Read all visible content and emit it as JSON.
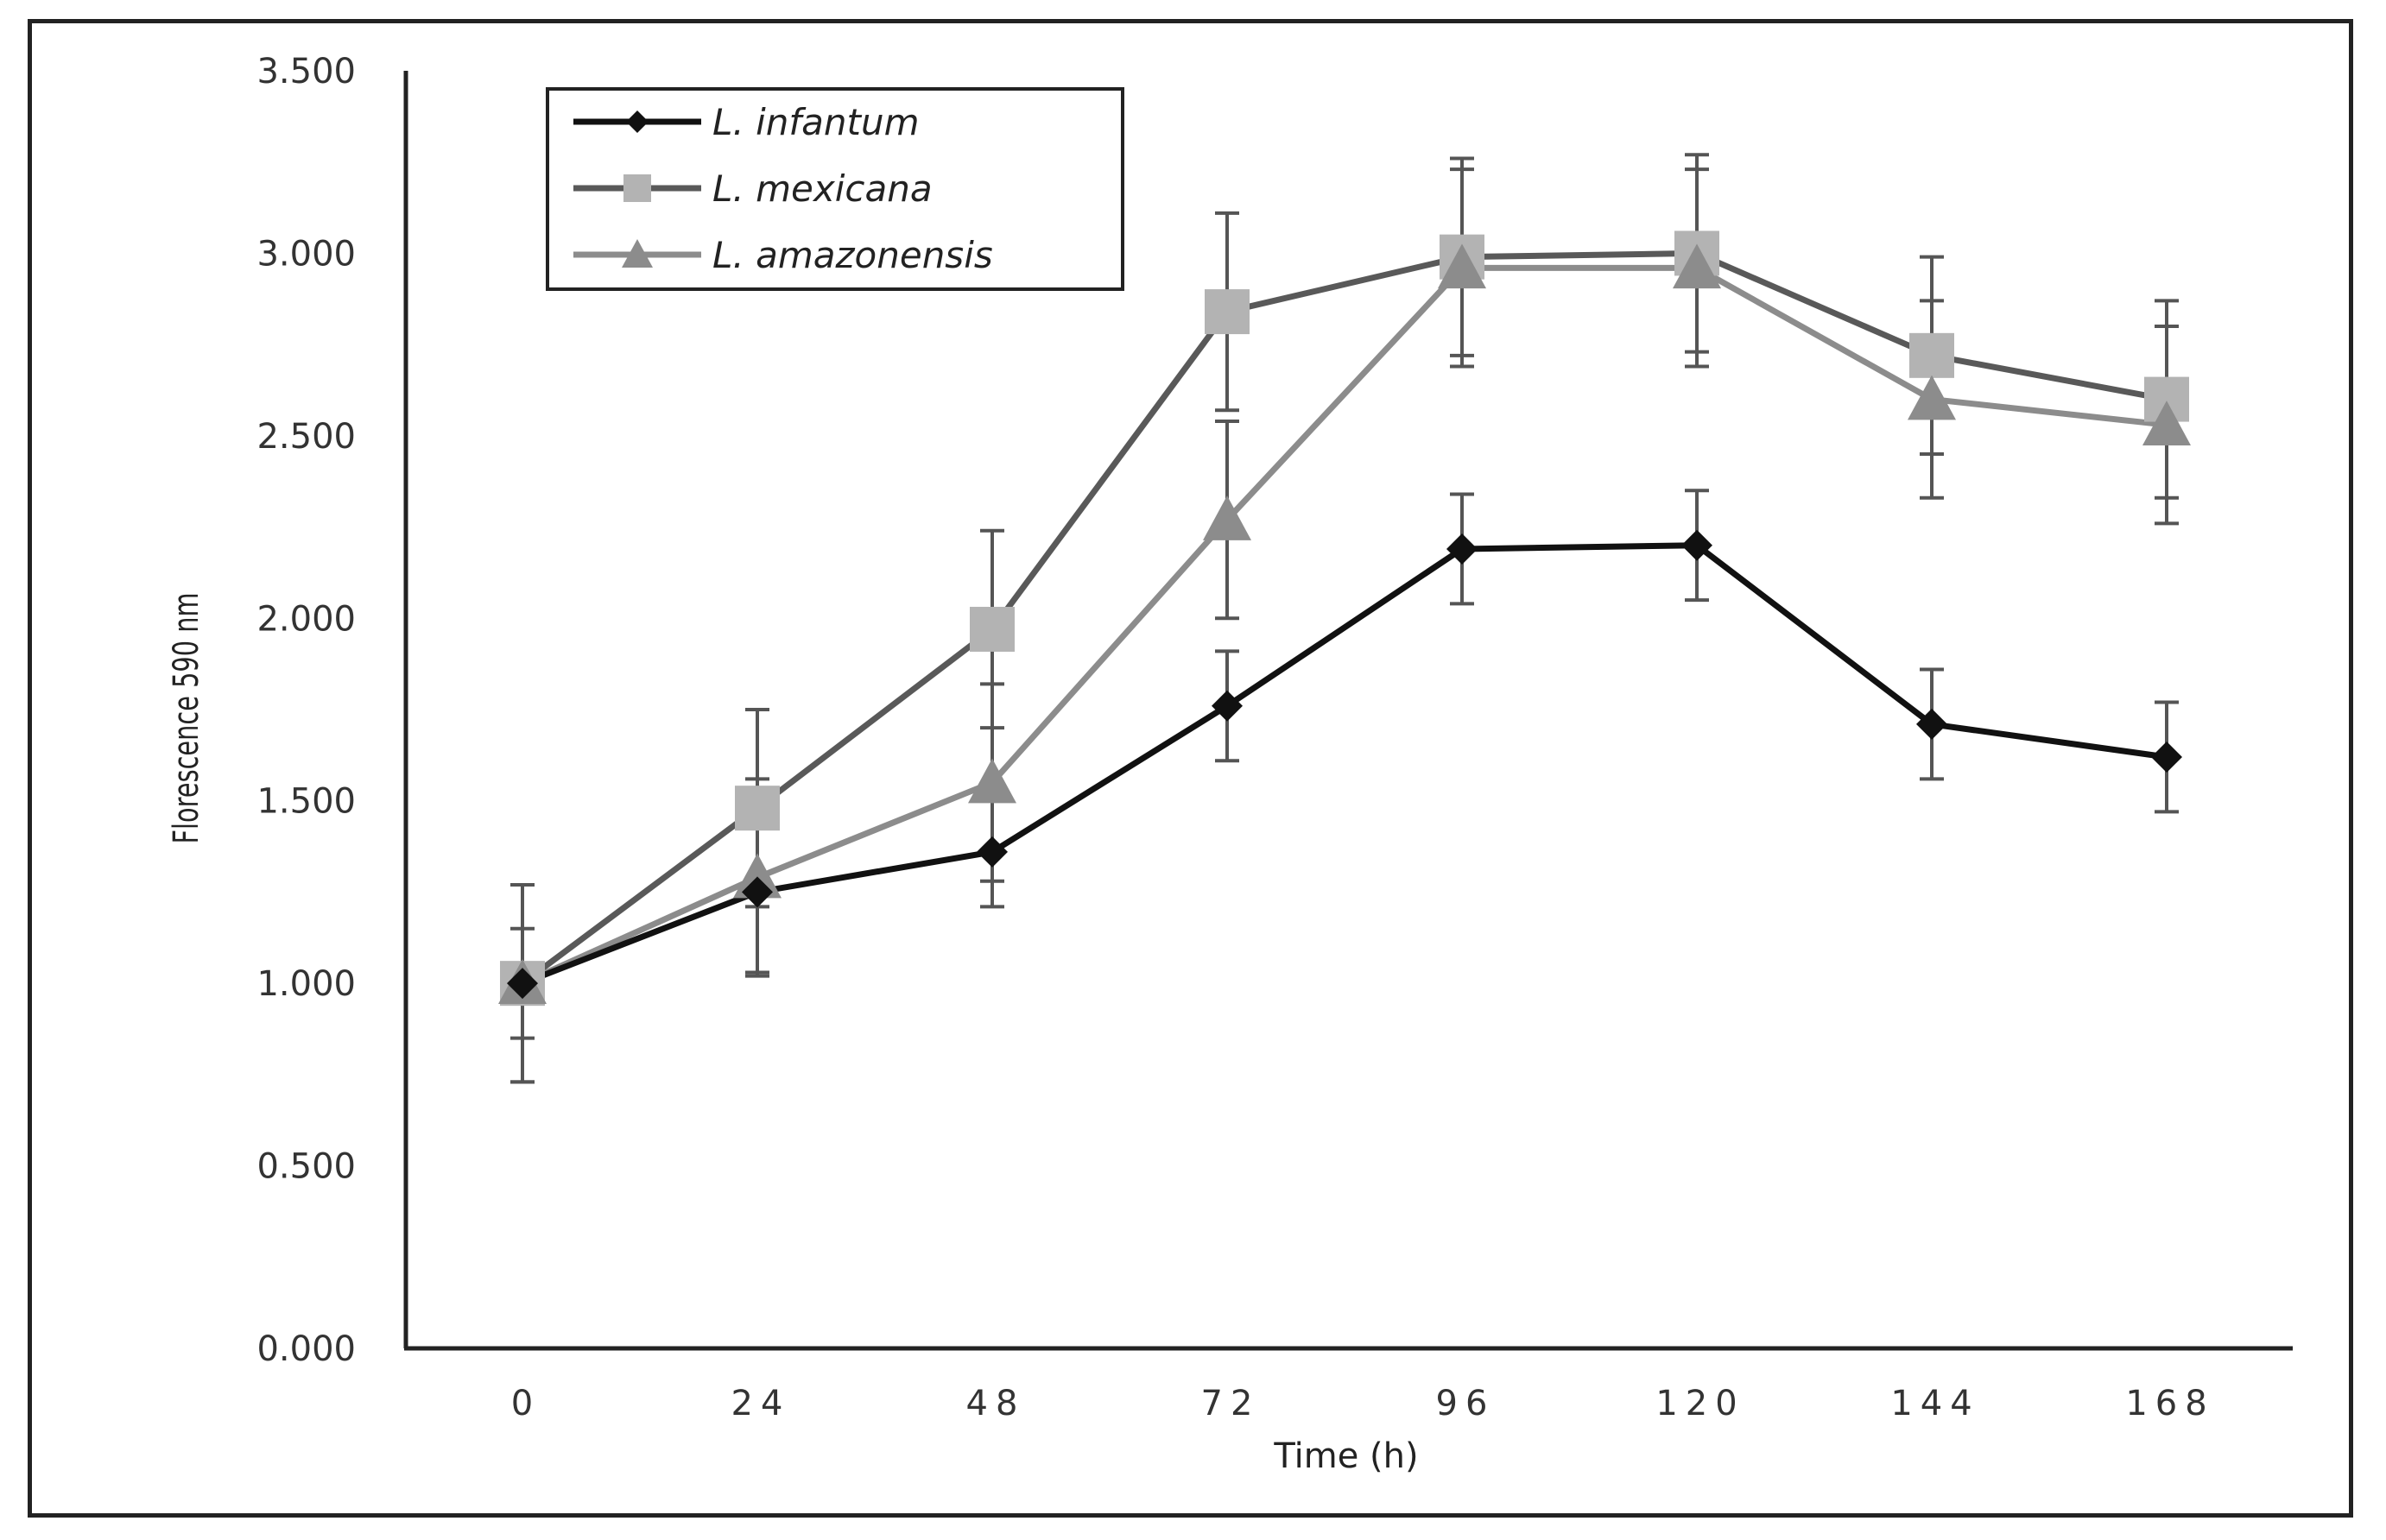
{
  "chart_data": {
    "type": "line",
    "title": "",
    "xlabel": "Time (h)",
    "ylabel": "Florescence  590 nm",
    "categories": [
      "0",
      "24",
      "48",
      "72",
      "96",
      "120",
      "144",
      "168"
    ],
    "ytick_labels": [
      "0.000",
      "0.500",
      "1.000",
      "1.500",
      "2.000",
      "2.500",
      "3.000",
      "3.500"
    ],
    "ylim": [
      0,
      3.5
    ],
    "grid": false,
    "legend_position": "top-left",
    "series": [
      {
        "name": "L. infantum",
        "marker": "diamond",
        "color": "#111111",
        "values": [
          1.0,
          1.25,
          1.36,
          1.76,
          2.19,
          2.2,
          1.71,
          1.62
        ],
        "errors": [
          0.27,
          0.22,
          0.15,
          0.15,
          0.15,
          0.15,
          0.15,
          0.15
        ]
      },
      {
        "name": "L. mexicana",
        "marker": "square",
        "color": "#595959",
        "marker_color": "#b3b3b3",
        "values": [
          1.0,
          1.48,
          1.97,
          2.84,
          2.99,
          3.0,
          2.72,
          2.6
        ],
        "errors": [
          0.27,
          0.27,
          0.27,
          0.27,
          0.27,
          0.27,
          0.27,
          0.27
        ]
      },
      {
        "name": "L. amazonensis",
        "marker": "triangle",
        "color": "#8c8c8c",
        "values": [
          1.0,
          1.29,
          1.55,
          2.27,
          2.96,
          2.96,
          2.6,
          2.53
        ],
        "errors": [
          0.15,
          0.27,
          0.27,
          0.27,
          0.27,
          0.27,
          0.27,
          0.27
        ]
      }
    ]
  }
}
